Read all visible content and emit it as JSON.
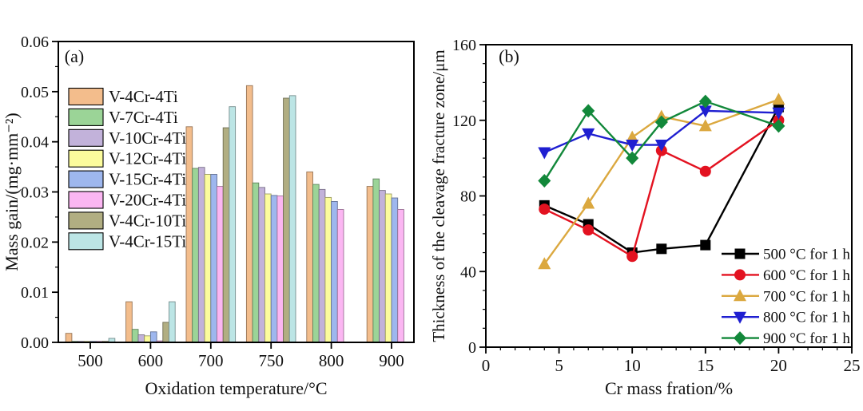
{
  "figure": {
    "background": "#ffffff",
    "panel_a_label": "(a)",
    "panel_b_label": "(b)"
  },
  "chart_data": [
    {
      "id": "a",
      "type": "bar",
      "panel_label": "(a)",
      "xlabel": "Oxidation temperature/°C",
      "ylabel": "Mass gain/(mg·mm⁻²)",
      "categories": [
        "500",
        "600",
        "700",
        "750",
        "800",
        "900"
      ],
      "ylim": [
        0,
        0.06
      ],
      "ytick_step": 0.01,
      "yminor_step": 0.005,
      "ytick_decimals": 2,
      "grid": false,
      "legend_position": "upper-left",
      "series": [
        {
          "name": "V-4Cr-4Ti",
          "color": "#f3bd8c",
          "values": [
            0.0018,
            0.0081,
            0.043,
            0.0512,
            0.034,
            0.0311
          ]
        },
        {
          "name": "V-7Cr-4Ti",
          "color": "#9bd497",
          "values": [
            0.0002,
            0.0026,
            0.0347,
            0.0318,
            0.0315,
            0.0326
          ]
        },
        {
          "name": "V-10Cr-4Ti",
          "color": "#c2b2da",
          "values": [
            0.0002,
            0.0015,
            0.0349,
            0.0309,
            0.0305,
            0.0303
          ]
        },
        {
          "name": "V-12Cr-4Ti",
          "color": "#fcfc9d",
          "values": [
            0.0002,
            0.0013,
            0.0335,
            0.0296,
            0.0289,
            0.0296
          ]
        },
        {
          "name": "V-15Cr-4Ti",
          "color": "#9eb7ee",
          "values": [
            0.0002,
            0.0021,
            0.0335,
            0.0293,
            0.0281,
            0.0288
          ]
        },
        {
          "name": "V-20Cr-4Ti",
          "color": "#fbb6f2",
          "values": [
            0.0002,
            0.0003,
            0.0311,
            0.0292,
            0.0265,
            0.0265
          ]
        },
        {
          "name": "V-4Cr-10Ti",
          "color": "#b1ae82",
          "values": [
            0.0002,
            0.004,
            0.0428,
            0.0487,
            null,
            null
          ]
        },
        {
          "name": "V-4Cr-15Ti",
          "color": "#bce5e5",
          "values": [
            0.0008,
            0.0081,
            0.047,
            0.0492,
            null,
            null
          ]
        }
      ]
    },
    {
      "id": "b",
      "type": "line",
      "panel_label": "(b)",
      "xlabel": "Cr mass fration/%",
      "ylabel": "Thickness of the cleavage fracture zone/μm",
      "x": [
        4,
        7,
        10,
        12,
        15,
        20
      ],
      "xlim": [
        0,
        25
      ],
      "xtick_step": 5,
      "xminor_step": 1,
      "ylim": [
        0,
        160
      ],
      "ytick_step": 40,
      "yminor_step": 10,
      "grid": false,
      "legend_position": "lower-right",
      "series": [
        {
          "name": "500 °C for 1 h",
          "color": "#000000",
          "marker": "square",
          "values": [
            75,
            65,
            50,
            52,
            54,
            127
          ]
        },
        {
          "name": "600 °C for 1 h",
          "color": "#e31220",
          "marker": "circle",
          "values": [
            73,
            62,
            48,
            104,
            93,
            120
          ]
        },
        {
          "name": "700 °C for 1 h",
          "color": "#dba83f",
          "marker": "triangle-up",
          "values": [
            44,
            76,
            111,
            122,
            117,
            131
          ]
        },
        {
          "name": "800 °C for 1 h",
          "color": "#1f1fd1",
          "marker": "triangle-down",
          "values": [
            103,
            113,
            107,
            107,
            125,
            124
          ]
        },
        {
          "name": "900 °C for 1 h",
          "color": "#12883a",
          "marker": "diamond",
          "values": [
            88,
            125,
            100,
            119,
            130,
            117
          ]
        }
      ]
    }
  ]
}
